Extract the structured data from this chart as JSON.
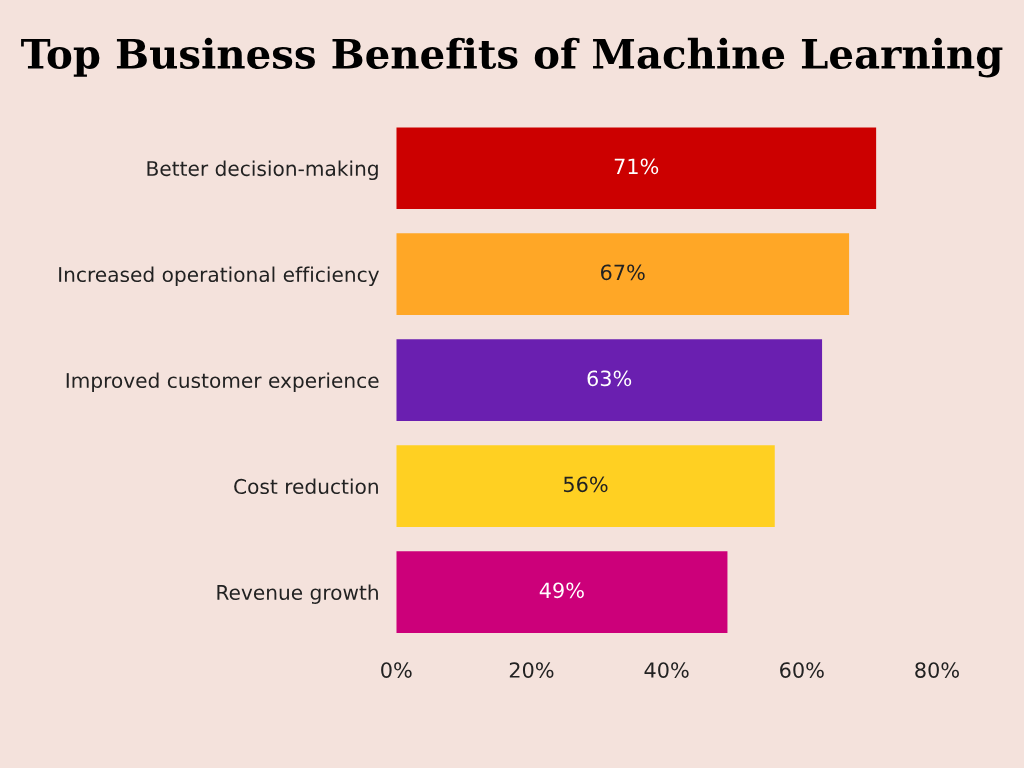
{
  "chart_data": {
    "type": "bar",
    "orientation": "horizontal",
    "title": "Top Business Benefits of Machine Learning",
    "categories": [
      "Better decision-making",
      "Increased operational efficiency",
      "Improved customer experience",
      "Cost reduction",
      "Revenue growth"
    ],
    "values": [
      71,
      67,
      63,
      56,
      49
    ],
    "colors": [
      "#cc0000",
      "#ffa726",
      "#6a1fb0",
      "#ffd022",
      "#cc007a"
    ],
    "value_labels": [
      "71%",
      "67%",
      "63%",
      "56%",
      "49%"
    ],
    "xlim": [
      0,
      80
    ],
    "xticks": [
      {
        "value": 0,
        "label": "0%"
      },
      {
        "value": 20,
        "label": "20%"
      },
      {
        "value": 40,
        "label": "40%"
      },
      {
        "value": 60,
        "label": "60%"
      },
      {
        "value": 80,
        "label": "80%"
      }
    ],
    "grid": false,
    "legend": false
  }
}
